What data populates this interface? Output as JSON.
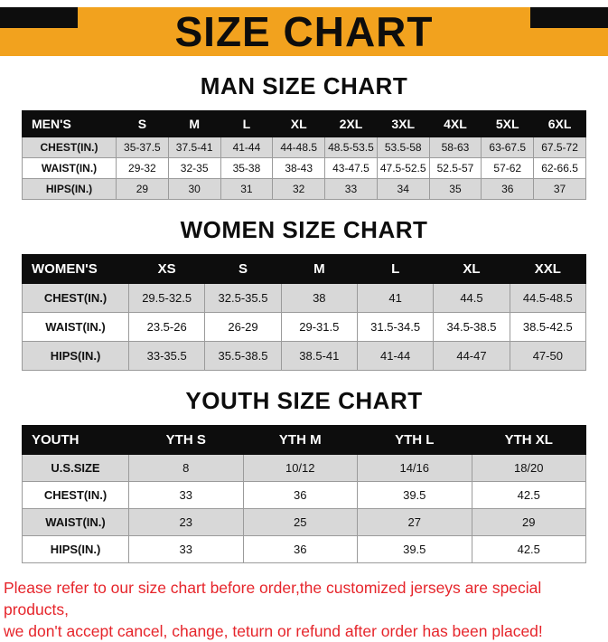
{
  "banner": {
    "title": "SIZE CHART"
  },
  "tables": {
    "men": {
      "heading": "MAN SIZE CHART",
      "header": [
        "MEN'S",
        "S",
        "M",
        "L",
        "XL",
        "2XL",
        "3XL",
        "4XL",
        "5XL",
        "6XL"
      ],
      "rows": [
        [
          "CHEST(IN.)",
          "35-37.5",
          "37.5-41",
          "41-44",
          "44-48.5",
          "48.5-53.5",
          "53.5-58",
          "58-63",
          "63-67.5",
          "67.5-72"
        ],
        [
          "WAIST(IN.)",
          "29-32",
          "32-35",
          "35-38",
          "38-43",
          "43-47.5",
          "47.5-52.5",
          "52.5-57",
          "57-62",
          "62-66.5"
        ],
        [
          "HIPS(IN.)",
          "29",
          "30",
          "31",
          "32",
          "33",
          "34",
          "35",
          "36",
          "37"
        ]
      ]
    },
    "women": {
      "heading": "WOMEN SIZE CHART",
      "header": [
        "WOMEN'S",
        "XS",
        "S",
        "M",
        "L",
        "XL",
        "XXL"
      ],
      "rows": [
        [
          "CHEST(IN.)",
          "29.5-32.5",
          "32.5-35.5",
          "38",
          "41",
          "44.5",
          "44.5-48.5"
        ],
        [
          "WAIST(IN.)",
          "23.5-26",
          "26-29",
          "29-31.5",
          "31.5-34.5",
          "34.5-38.5",
          "38.5-42.5"
        ],
        [
          "HIPS(IN.)",
          "33-35.5",
          "35.5-38.5",
          "38.5-41",
          "41-44",
          "44-47",
          "47-50"
        ]
      ]
    },
    "youth": {
      "heading": "YOUTH SIZE CHART",
      "header": [
        "YOUTH",
        "YTH S",
        "YTH M",
        "YTH L",
        "YTH XL"
      ],
      "rows": [
        [
          "U.S.SIZE",
          "8",
          "10/12",
          "14/16",
          "18/20"
        ],
        [
          "CHEST(IN.)",
          "33",
          "36",
          "39.5",
          "42.5"
        ],
        [
          "WAIST(IN.)",
          "23",
          "25",
          "27",
          "29"
        ],
        [
          "HIPS(IN.)",
          "33",
          "36",
          "39.5",
          "42.5"
        ]
      ]
    }
  },
  "footer": {
    "line1": "Please refer to our size chart before order,the customized jerseys are special products,",
    "line2": "we don't accept cancel, change, teturn or refund after order has been placed!"
  },
  "colors": {
    "banner_bg": "#F2A21E",
    "ink": "#0D0D0D",
    "table_header_bg": "#0D0D0D",
    "row_alt_bg": "#D8D8D8",
    "footer_text": "#E6252B"
  }
}
